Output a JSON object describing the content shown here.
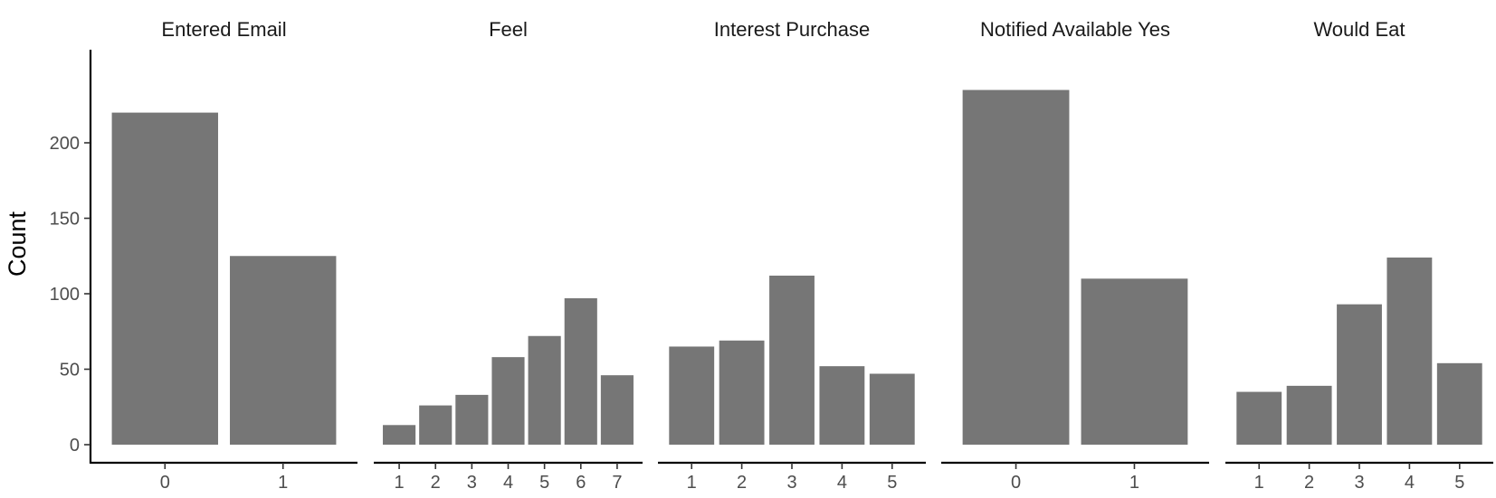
{
  "chart_data": {
    "type": "bar",
    "ylabel": "Count",
    "xlabel": "",
    "ylim": [
      0,
      250
    ],
    "y_ticks": [
      0,
      50,
      100,
      150,
      200
    ],
    "bar_color": "#767676",
    "grid": false,
    "panels": [
      {
        "title": "Entered Email",
        "categories": [
          "0",
          "1"
        ],
        "values": [
          220,
          125
        ]
      },
      {
        "title": "Feel",
        "categories": [
          "1",
          "2",
          "3",
          "4",
          "5",
          "6",
          "7"
        ],
        "values": [
          13,
          26,
          33,
          58,
          72,
          97,
          46
        ]
      },
      {
        "title": "Interest Purchase",
        "categories": [
          "1",
          "2",
          "3",
          "4",
          "5"
        ],
        "values": [
          65,
          69,
          112,
          52,
          47
        ]
      },
      {
        "title": "Notified Available Yes",
        "categories": [
          "0",
          "1"
        ],
        "values": [
          235,
          110
        ]
      },
      {
        "title": "Would Eat",
        "categories": [
          "1",
          "2",
          "3",
          "4",
          "5"
        ],
        "values": [
          35,
          39,
          93,
          124,
          54
        ]
      }
    ]
  }
}
